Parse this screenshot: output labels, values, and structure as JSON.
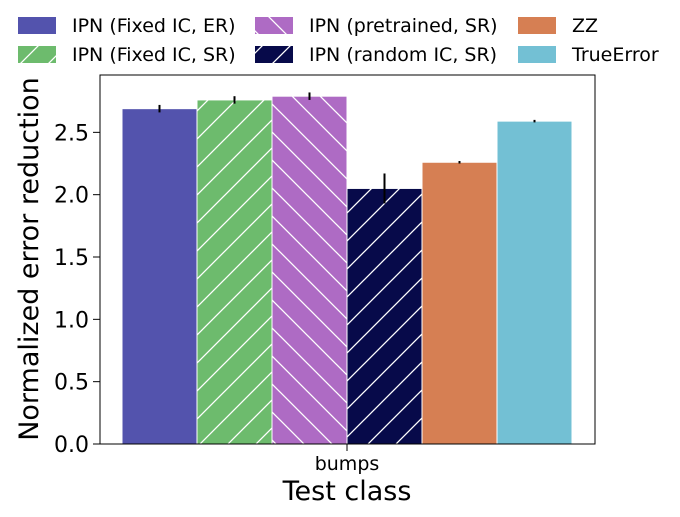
{
  "chart_data": {
    "type": "bar",
    "xlabel": "Test class",
    "ylabel": "Normalized error reduction",
    "categories": [
      "bumps"
    ],
    "ylim": [
      0,
      2.96
    ],
    "yticks": [
      0.0,
      0.5,
      1.0,
      1.5,
      2.0,
      2.5
    ],
    "ytick_labels": [
      "0.0",
      "0.5",
      "1.0",
      "1.5",
      "2.0",
      "2.5"
    ],
    "legend_position": "top",
    "series": [
      {
        "name": "IPN (Fixed IC, ER)",
        "values": [
          2.69
        ],
        "error": [
          0.03
        ],
        "color": "#5353ad",
        "hatch": "none"
      },
      {
        "name": "IPN (Fixed IC, SR)",
        "values": [
          2.76
        ],
        "error": [
          0.03
        ],
        "color": "#6dbb6d",
        "hatch": "forward"
      },
      {
        "name": "IPN (pretrained, SR)",
        "values": [
          2.79
        ],
        "error": [
          0.03
        ],
        "color": "#ae6bc4",
        "hatch": "back"
      },
      {
        "name": "IPN (random IC, SR)",
        "values": [
          2.05
        ],
        "error": [
          0.12
        ],
        "color": "#070a4a",
        "hatch": "forward"
      },
      {
        "name": "ZZ",
        "values": [
          2.26
        ],
        "error": [
          0.01
        ],
        "color": "#d67f53",
        "hatch": "none"
      },
      {
        "name": "TrueError",
        "values": [
          2.59
        ],
        "error": [
          0.01
        ],
        "color": "#73c0d4",
        "hatch": "none"
      }
    ]
  }
}
